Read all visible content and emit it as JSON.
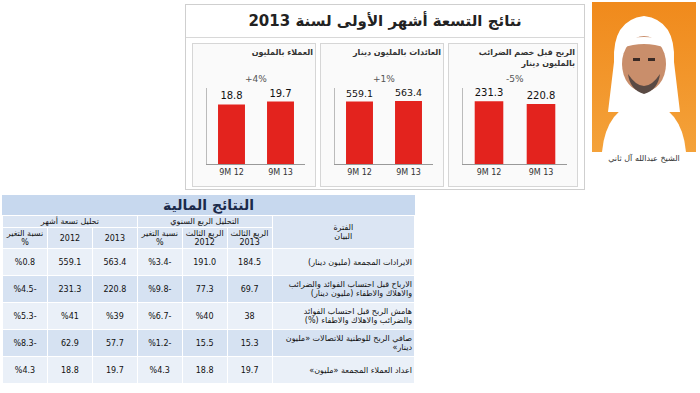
{
  "title": "نتائج التسعة أشهر الأولى لسنة 2013",
  "photo_caption": "الشيخ عبدالله آل ثاني",
  "chart_data": [
    {
      "type": "bar",
      "title": "العملاء بالمليون",
      "categories": [
        "9M 12",
        "9M 13"
      ],
      "values": [
        18.8,
        19.7
      ],
      "color": "#e3231e",
      "ylim": [
        0,
        24
      ],
      "data_labels": true,
      "tick_labels": "x",
      "grid": false,
      "annotations": [
        "+4%"
      ]
    },
    {
      "type": "bar",
      "title": "العائدات بالمليون دينار",
      "categories": [
        "9M 12",
        "9M 13"
      ],
      "values": [
        559.1,
        563.4
      ],
      "color": "#e3231e",
      "ylim": [
        0,
        680
      ],
      "data_labels": true,
      "tick_labels": "x",
      "grid": false,
      "annotations": [
        "+1%"
      ]
    },
    {
      "type": "bar",
      "title": "الربح قبل خصم الضرائب بالمليون دينار",
      "categories": [
        "9M 12",
        "9M 13"
      ],
      "values": [
        231.3,
        220.8
      ],
      "color": "#e3231e",
      "ylim": [
        0,
        280
      ],
      "data_labels": true,
      "tick_labels": "x",
      "grid": false,
      "annotations": [
        "-5%"
      ]
    }
  ],
  "table": {
    "title": "النتائج المالية",
    "header": {
      "period": "الفترة",
      "item": "البيان",
      "groups": [
        {
          "label": "التحليل الربع السنوي",
          "columns": [
            "الربع الثالث 2013",
            "الربع الثالث 2012",
            "نسبة التغير %"
          ]
        },
        {
          "label": "تحليل تسعة أشهر",
          "columns": [
            "2013",
            "2012",
            "نسبة التغير %"
          ]
        }
      ]
    },
    "rows": [
      [
        "الايرادات المجمعة (مليون دينار)",
        "184.5",
        "191.0",
        "%3.4-",
        "563.4",
        "559.1",
        "%0.8"
      ],
      [
        "الارباح قبل احتساب الفوائد والضرائب والاهلاك والاطفاء (مليون دينار)",
        "69.7",
        "77.3",
        "%9.8-",
        "220.8",
        "231.3",
        "%4.5-"
      ],
      [
        "هامش الربح قبل احتساب الفوائد والضرائب والاهلاك والاطفاء (%)",
        "38",
        "%40",
        "%6.7-",
        "%39",
        "%41",
        "%5.3-"
      ],
      [
        "صافي الربح للوطنية للاتصالات «مليون دينار»",
        "15.3",
        "15.5",
        "%1.2-",
        "57.7",
        "62.9",
        "%8.3-"
      ],
      [
        "اعداد العملاء المجمعة «مليون»",
        "19.7",
        "18.8",
        "%4.3",
        "19.7",
        "18.8",
        "%4.3"
      ]
    ]
  }
}
